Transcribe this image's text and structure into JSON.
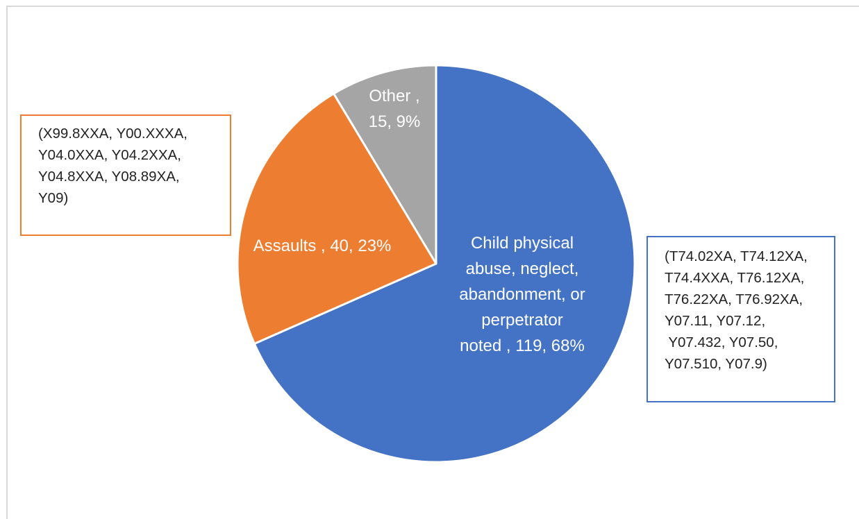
{
  "chart_data": {
    "type": "pie",
    "start_angle_deg": 0,
    "direction": "clockwise",
    "colors": {
      "blue": "#4472c4",
      "orange": "#ed7d31",
      "gray": "#a5a5a5",
      "separator": "#ffffff"
    },
    "slices": [
      {
        "key": "child",
        "label_lines": [
          "Child physical",
          "abuse, neglect,",
          "abandonment, or",
          "perpetrator",
          "noted , 119, 68%"
        ],
        "value": 119,
        "percent": 68,
        "color": "#4472c4"
      },
      {
        "key": "assaults",
        "label_lines": [
          "Assaults , 40, 23%"
        ],
        "value": 40,
        "percent": 23,
        "color": "#ed7d31"
      },
      {
        "key": "other",
        "label_lines": [
          "Other ,",
          "15, 9%"
        ],
        "value": 15,
        "percent": 9,
        "color": "#a5a5a5"
      }
    ],
    "annotations": {
      "assaults_codes": [
        "(X99.8XXA, Y00.XXXA,",
        "Y04.0XXA, Y04.2XXA,",
        "Y04.8XXA, Y08.89XA,",
        "Y09)"
      ],
      "child_codes": [
        "(T74.02XA, T74.12XA,",
        "T74.4XXA, T76.12XA,",
        "T76.22XA, T76.92XA,",
        "Y07.11, Y07.12,",
        " Y07.432, Y07.50,",
        "Y07.510, Y07.9)"
      ]
    }
  }
}
